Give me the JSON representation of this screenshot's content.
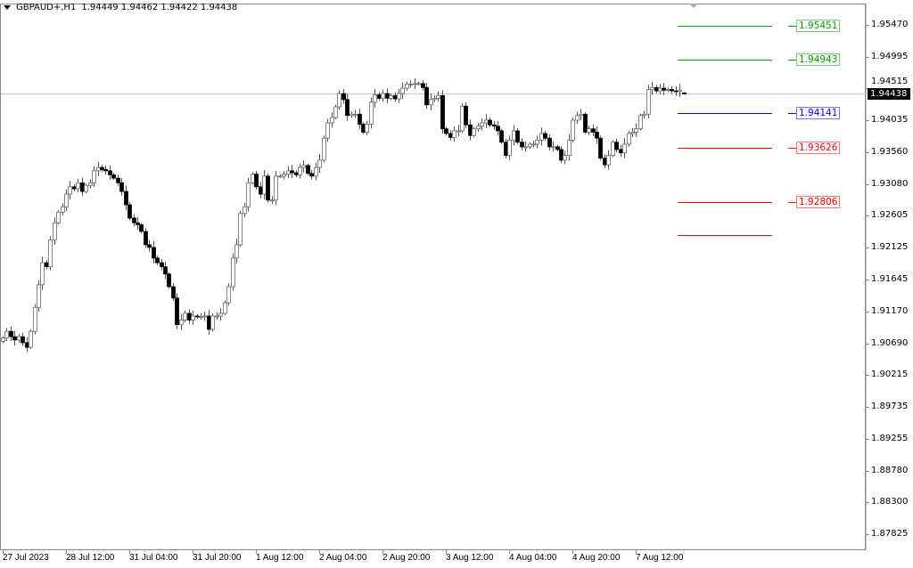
{
  "header": {
    "symbol": "GBPAUD+,H1",
    "ohlc": "1.94449 1.94462 1.94422 1.94438"
  },
  "current_price": "1.94438",
  "levels": [
    {
      "value": 1.95451,
      "label": "1.95451",
      "color": "#00a000"
    },
    {
      "value": 1.94943,
      "label": "1.94943",
      "color": "#00a000"
    },
    {
      "value": 1.94141,
      "label": "1.94141",
      "color": "#0000ff"
    },
    {
      "value": 1.93626,
      "label": "1.93626",
      "color": "#ff0000"
    },
    {
      "value": 1.92806,
      "label": "1.92806",
      "color": "#ff0000"
    },
    {
      "value": 1.92316,
      "label": "",
      "color": "#ff0000"
    }
  ],
  "chart_data": {
    "type": "candlestick",
    "symbol": "GBPAUD+",
    "timeframe": "H1",
    "ylim": [
      1.8778,
      1.9578
    ],
    "grid": false,
    "y_ticks": [
      "1.95470",
      "1.94995",
      "1.94515",
      "1.94035",
      "1.93560",
      "1.93080",
      "1.92605",
      "1.92125",
      "1.91645",
      "1.91170",
      "1.90690",
      "1.90215",
      "1.89735",
      "1.89255",
      "1.88780",
      "1.88300",
      "1.87825"
    ],
    "x_ticks": [
      "27 Jul 2023",
      "28 Jul 12:00",
      "31 Jul 04:00",
      "31 Jul 20:00",
      "1 Aug 12:00",
      "2 Aug 04:00",
      "2 Aug 20:00",
      "3 Aug 12:00",
      "4 Aug 04:00",
      "4 Aug 20:00",
      "7 Aug 12:00"
    ],
    "last_candle": {
      "open": 1.94449,
      "high": 1.94462,
      "low": 1.94422,
      "close": 1.94438
    },
    "closes": [
      1.9077,
      1.9087,
      1.9079,
      1.9074,
      1.9079,
      1.907,
      1.9063,
      1.9087,
      1.9123,
      1.9157,
      1.919,
      1.9184,
      1.9224,
      1.925,
      1.9266,
      1.9274,
      1.9293,
      1.9304,
      1.9301,
      1.931,
      1.9297,
      1.9306,
      1.931,
      1.9328,
      1.9333,
      1.933,
      1.9328,
      1.9322,
      1.9317,
      1.931,
      1.9297,
      1.9277,
      1.9257,
      1.925,
      1.9247,
      1.9237,
      1.9217,
      1.9213,
      1.9197,
      1.919,
      1.9184,
      1.9173,
      1.9154,
      1.9137,
      1.9097,
      1.9104,
      1.9114,
      1.9104,
      1.911,
      1.9109,
      1.9109,
      1.911,
      1.909,
      1.911,
      1.911,
      1.9114,
      1.913,
      1.9154,
      1.9197,
      1.9217,
      1.9264,
      1.9274,
      1.931,
      1.9323,
      1.9304,
      1.9293,
      1.932,
      1.9284,
      1.9284,
      1.932,
      1.932,
      1.9323,
      1.9328,
      1.9325,
      1.9322,
      1.9333,
      1.9336,
      1.9324,
      1.932,
      1.9333,
      1.9344,
      1.9377,
      1.94,
      1.9408,
      1.9424,
      1.9444,
      1.9435,
      1.9411,
      1.9413,
      1.9413,
      1.9398,
      1.9386,
      1.9398,
      1.9431,
      1.9442,
      1.9437,
      1.9444,
      1.9437,
      1.9441,
      1.9436,
      1.9444,
      1.9452,
      1.9458,
      1.9458,
      1.9459,
      1.9459,
      1.9453,
      1.9427,
      1.9435,
      1.9437,
      1.9441,
      1.9391,
      1.9384,
      1.9378,
      1.9388,
      1.9388,
      1.9425,
      1.9397,
      1.9381,
      1.9391,
      1.9395,
      1.94,
      1.9404,
      1.9397,
      1.9395,
      1.9388,
      1.9371,
      1.9351,
      1.9374,
      1.9388,
      1.9371,
      1.9364,
      1.9364,
      1.9368,
      1.9368,
      1.9374,
      1.9384,
      1.9377,
      1.9364,
      1.9364,
      1.936,
      1.9344,
      1.9351,
      1.9374,
      1.9404,
      1.9411,
      1.9413,
      1.9386,
      1.9391,
      1.9386,
      1.9377,
      1.9347,
      1.9337,
      1.9351,
      1.9371,
      1.936,
      1.9355,
      1.9368,
      1.9384,
      1.9386,
      1.9391,
      1.9411,
      1.9413,
      1.945,
      1.9453,
      1.9448,
      1.9452,
      1.9449,
      1.945,
      1.9448,
      1.9447,
      1.9449,
      1.94438
    ]
  }
}
